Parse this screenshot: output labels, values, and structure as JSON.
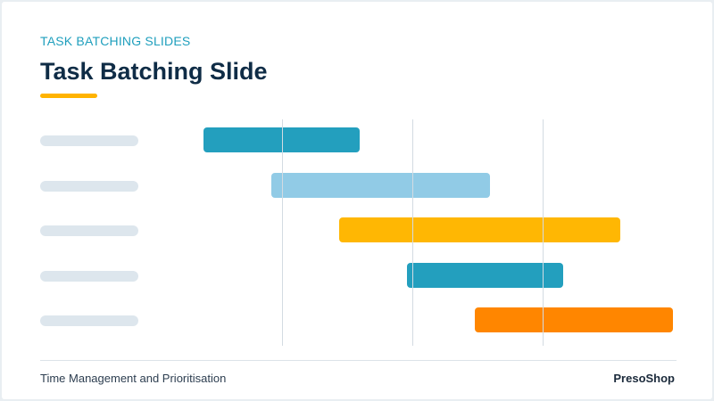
{
  "header": {
    "eyebrow": "TASK BATCHING SLIDES",
    "title": "Task Batching Slide",
    "accent_color": "#ffb300"
  },
  "gantt": {
    "row_count": 5,
    "gridline_count": 3,
    "tasks": [
      {
        "start": 0.0,
        "end": 1.2,
        "color": "#239fbe"
      },
      {
        "start": 0.52,
        "end": 2.2,
        "color": "#91cbe6"
      },
      {
        "start": 1.04,
        "end": 3.2,
        "color": "#ffb703"
      },
      {
        "start": 1.56,
        "end": 2.76,
        "color": "#239fbe"
      },
      {
        "start": 2.08,
        "end": 3.6,
        "color": "#ff8600"
      }
    ]
  },
  "footer": {
    "left_text": "Time Management and Prioritisation",
    "right_text": "PresoShop"
  }
}
